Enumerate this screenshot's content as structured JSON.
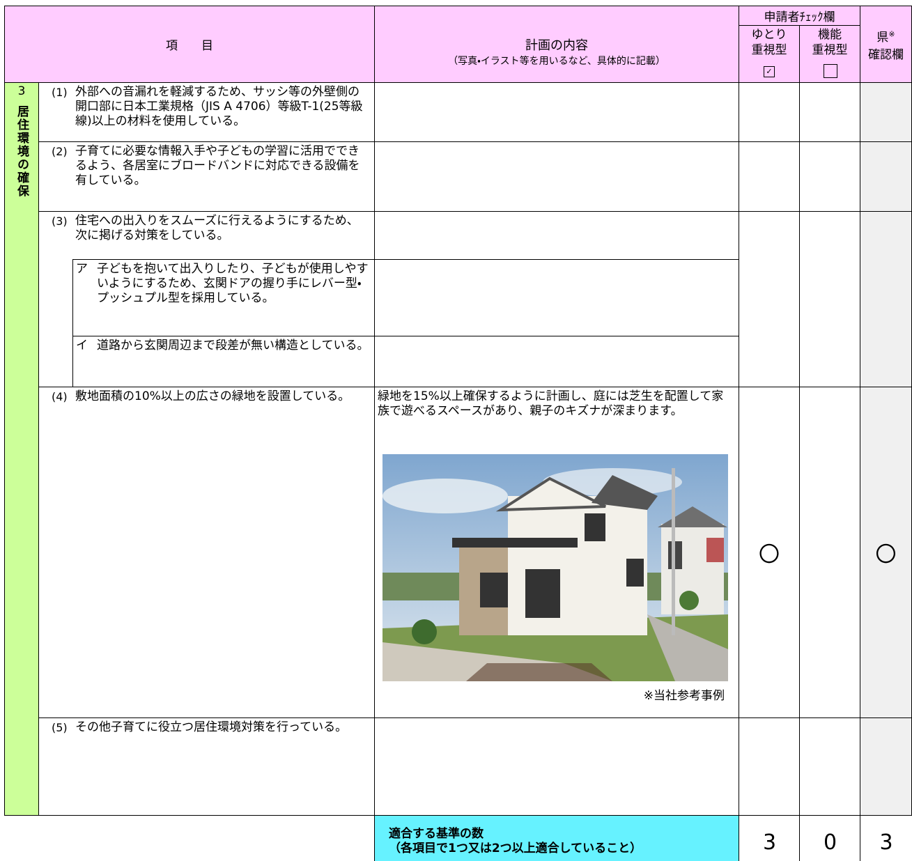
{
  "header": {
    "item": "項　　目",
    "plan_title": "計画の内容",
    "plan_note": "（写真・イラスト等を用いるなど、具体的に記載）",
    "applicant_check": "申請者ﾁｪｯｸ欄",
    "yutori": "ゆとり\n重視型",
    "kinou": "機能\n重視型",
    "prefecture": "県",
    "prefecture_note_mark": "※",
    "prefecture_check": "確認欄"
  },
  "section": {
    "number": "3",
    "title": "居住環境の確保"
  },
  "items": [
    {
      "number": "(1)",
      "text": "外部への音漏れを軽減するため、サッシ等の外壁側の開口部に日本工業規格（JIS A 4706）等級T-1(25等級線)以上の材料を使用している。"
    },
    {
      "number": "(2)",
      "text": "子育てに必要な情報入手や子どもの学習に活用でできるよう、各居室にブロードバンドに対応できる設備を有している。"
    },
    {
      "number": "(3)",
      "text": "住宅への出入りをスムーズに行えるようにするため、次に掲げる対策をしている。",
      "subitems": [
        {
          "label": "ア",
          "text": "子どもを抱いて出入りしたり、子どもが使用しやすいようにするため、玄関ドアの握り手にレバー型・プッシュプル型を採用している。"
        },
        {
          "label": "イ",
          "text": "道路から玄関周辺まで段差が無い構造としている。"
        }
      ]
    },
    {
      "number": "(4)",
      "text": "敷地面積の10%以上の広さの緑地を設置している。",
      "plan": "緑地を15%以上確保するように計画し、庭には芝生を配置して家族で遊べるスペースがあり、親子のキズナが深まります。",
      "caption": "※当社参考事例",
      "yutori_mark": "〇",
      "prefecture_mark": "〇"
    },
    {
      "number": "(5)",
      "text": "その他子育てに役立つ居住環境対策を行っている。"
    }
  ],
  "footer": {
    "label": "適合する基準の数",
    "note": "（各項目で1つ又は2つ以上適合していること）",
    "yutori": 3,
    "kinou": 0,
    "prefecture": 3
  }
}
